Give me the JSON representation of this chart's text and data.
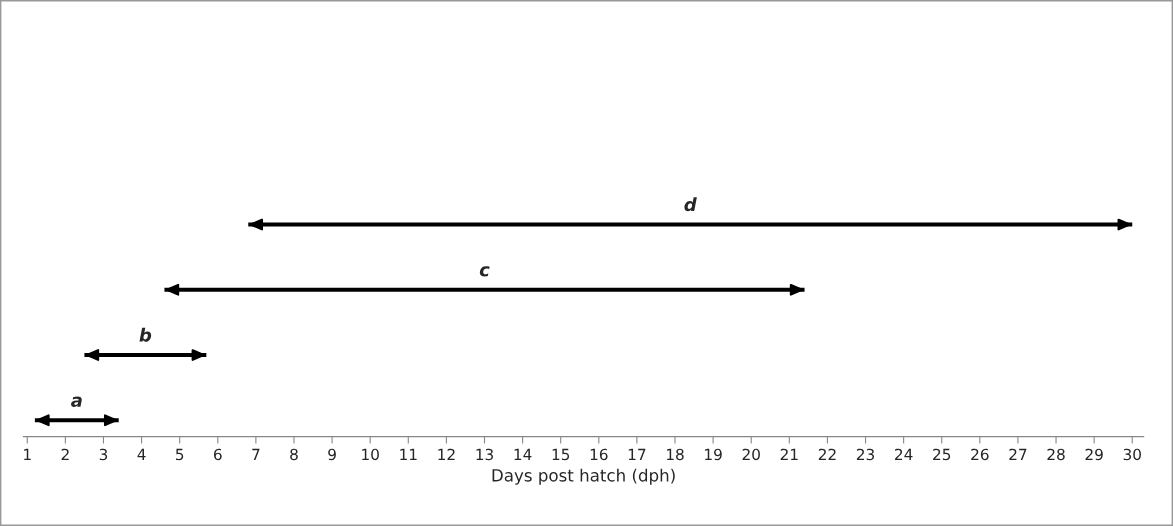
{
  "chart_data": {
    "type": "bar",
    "orientation": "horizontal",
    "xlabel": "Days post hatch (dph)",
    "categories": [
      null,
      null,
      null,
      null
    ],
    "annotations": [
      "d",
      "c",
      "b",
      "a"
    ],
    "base": [
      6.8,
      4.6,
      2.5,
      1.2
    ],
    "values": [
      23.2,
      16.8,
      3.2,
      2.2
    ],
    "color": "#000000",
    "xlim": [
      0.9,
      30.3
    ],
    "xticks": [
      1,
      2,
      3,
      4,
      5,
      6,
      7,
      8,
      9,
      10,
      11,
      12,
      13,
      14,
      15,
      16,
      17,
      18,
      19,
      20,
      21,
      22,
      23,
      24,
      25,
      26,
      27,
      28,
      29,
      30
    ],
    "tick_labels": "x",
    "grid": false,
    "legend": false
  }
}
